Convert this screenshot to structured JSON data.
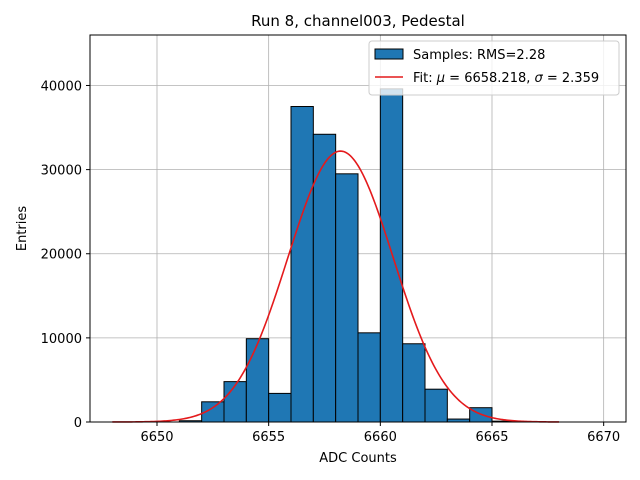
{
  "chart_data": {
    "type": "bar",
    "title": "Run 8, channel003, Pedestal",
    "xlabel": "ADC Counts",
    "ylabel": "Entries",
    "xlim": [
      6647,
      6671
    ],
    "ylim": [
      0,
      46000
    ],
    "xticks": [
      6650,
      6655,
      6660,
      6665,
      6670
    ],
    "yticks": [
      0,
      10000,
      20000,
      30000,
      40000
    ],
    "grid": true,
    "bar_color": "#1f77b4",
    "fit_color": "#e41a1c",
    "bins": [
      {
        "left": 6651,
        "right": 6652,
        "value": 150
      },
      {
        "left": 6652,
        "right": 6653,
        "value": 2400
      },
      {
        "left": 6653,
        "right": 6654,
        "value": 4800
      },
      {
        "left": 6654,
        "right": 6655,
        "value": 9900
      },
      {
        "left": 6655,
        "right": 6656,
        "value": 3400
      },
      {
        "left": 6656,
        "right": 6657,
        "value": 37500
      },
      {
        "left": 6657,
        "right": 6658,
        "value": 34200
      },
      {
        "left": 6658,
        "right": 6659,
        "value": 29500
      },
      {
        "left": 6659,
        "right": 6660,
        "value": 10600
      },
      {
        "left": 6660,
        "right": 6661,
        "value": 39600
      },
      {
        "left": 6661,
        "right": 6662,
        "value": 9300
      },
      {
        "left": 6662,
        "right": 6663,
        "value": 3900
      },
      {
        "left": 6663,
        "right": 6664,
        "value": 350
      },
      {
        "left": 6664,
        "right": 6665,
        "value": 1700
      },
      {
        "left": 6665,
        "right": 6666,
        "value": 100
      }
    ],
    "fit": {
      "mu": 6658.218,
      "sigma": 2.359,
      "amplitude": 32200,
      "x_range": [
        6648,
        6668
      ]
    },
    "legend": {
      "position": "top-right",
      "entries": [
        {
          "kind": "patch",
          "label": "Samples: RMS=2.28"
        },
        {
          "kind": "line",
          "label_prefix": "Fit: ",
          "mu_symbol": "μ",
          "mu_text": " = 6658.218, ",
          "sigma_symbol": "σ",
          "sigma_text": " = 2.359"
        }
      ]
    }
  }
}
